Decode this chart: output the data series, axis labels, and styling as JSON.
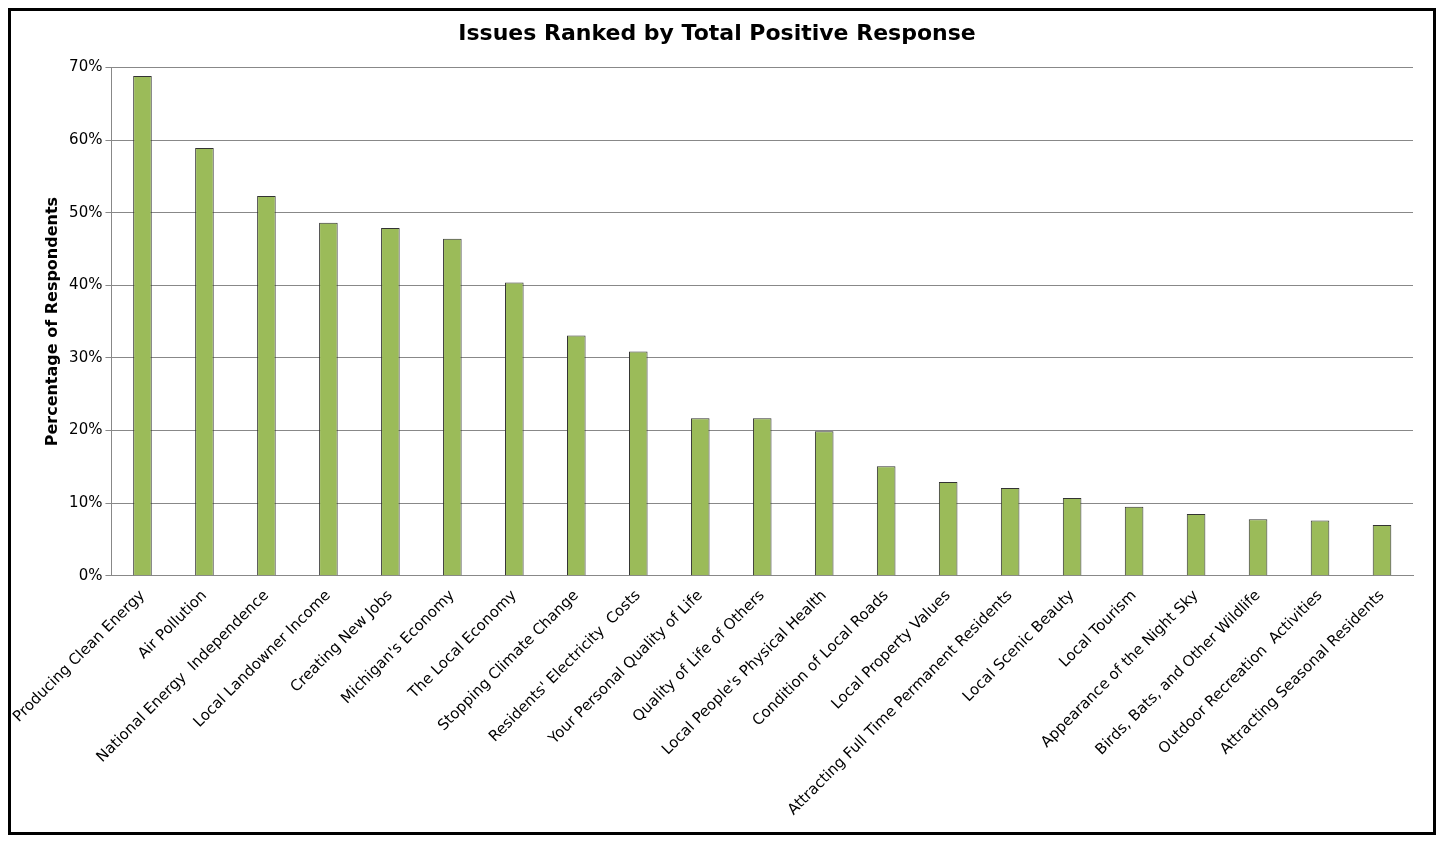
{
  "chart_data": {
    "type": "bar",
    "title": "Issues Ranked by Total Positive Response",
    "ylabel": "Percentage of Respondents",
    "categories": [
      "Producing Clean Energy",
      "Air Pollution",
      "National Energy  Independence",
      "Local Landowner Income",
      "Creating New Jobs",
      "Michigan's Economy",
      "The Local Economy",
      "Stopping Climate Change",
      "Residents' Electricity  Costs",
      "Your Personal Quality of Life",
      "Quality of Life of Others",
      "Local People's Physical Health",
      "Condition of Local Roads",
      "Local Property Values",
      "Attracting Full Time Permanent Residents",
      "Local Scenic Beauty",
      "Local Tourism",
      "Appearance of the Night Sky",
      "Birds, Bats, and Other Wildlife",
      "Outdoor Recreation  Activities",
      "Attracting Seasonal Residents"
    ],
    "values": [
      68.8,
      58.9,
      52.3,
      48.6,
      47.9,
      46.4,
      40.4,
      33.1,
      30.9,
      21.7,
      21.7,
      19.9,
      15.1,
      12.9,
      12.1,
      10.7,
      9.5,
      8.5,
      7.8,
      7.6,
      7.0
    ],
    "color": "#9bbb59",
    "ylim": [
      0,
      70
    ],
    "yticks": [
      {
        "value": 0,
        "label": "0%"
      },
      {
        "value": 10,
        "label": "10%"
      },
      {
        "value": 20,
        "label": "20%"
      },
      {
        "value": 30,
        "label": "30%"
      },
      {
        "value": 40,
        "label": "40%"
      },
      {
        "value": 50,
        "label": "50%"
      },
      {
        "value": 60,
        "label": "60%"
      },
      {
        "value": 70,
        "label": "70%"
      }
    ],
    "grid": "y",
    "legend": false
  }
}
